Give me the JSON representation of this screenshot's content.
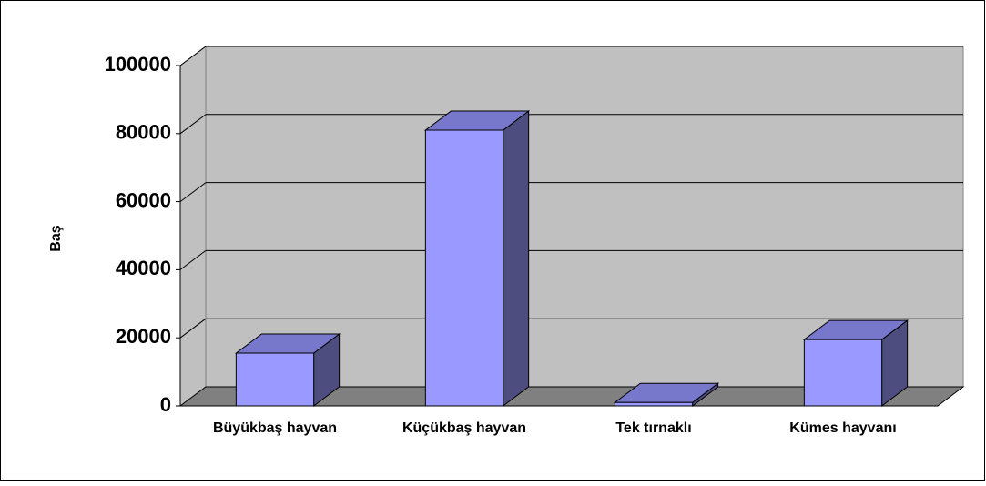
{
  "chart_data": {
    "type": "bar",
    "y_label": "Baş",
    "categories": [
      "Büyükbaş hayvan",
      "Küçükbaş hayvan",
      "Tek tırnaklı",
      "Kümes hayvanı"
    ],
    "values": [
      15500,
      81000,
      1000,
      19500
    ],
    "color": "#9999ff",
    "ylim": [
      0,
      100000
    ],
    "yticks": [
      0,
      20000,
      40000,
      60000,
      80000,
      100000
    ],
    "grid": true
  }
}
